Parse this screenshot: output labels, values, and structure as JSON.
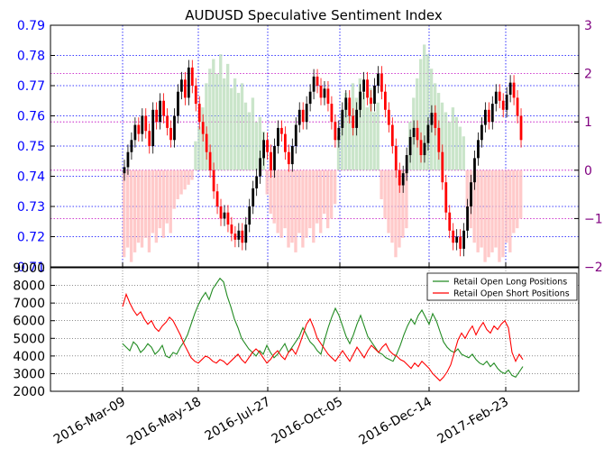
{
  "chart_data": [
    {
      "type": "candlestick+bar",
      "title": "AUDUSD Speculative Sentiment Index",
      "y_left": {
        "ticks": [
          0.71,
          0.72,
          0.73,
          0.74,
          0.75,
          0.76,
          0.77,
          0.78,
          0.79
        ],
        "tick_labels": [
          "0.71",
          "0.72",
          "0.73",
          "0.74",
          "0.75",
          "0.76",
          "0.77",
          "0.78",
          "0.79"
        ],
        "range": [
          0.71,
          0.79
        ],
        "color": "#0000ff"
      },
      "y_right": {
        "ticks": [
          -2,
          -1,
          0,
          1,
          2,
          3
        ],
        "tick_labels": [
          "−2",
          "−1",
          "0",
          "1",
          "2",
          "3"
        ],
        "range": [
          -2,
          3
        ],
        "color": "#800080"
      },
      "price_close": [
        0.743,
        0.748,
        0.752,
        0.757,
        0.754,
        0.76,
        0.755,
        0.75,
        0.762,
        0.758,
        0.765,
        0.76,
        0.756,
        0.752,
        0.76,
        0.768,
        0.772,
        0.766,
        0.776,
        0.77,
        0.764,
        0.758,
        0.754,
        0.748,
        0.742,
        0.735,
        0.73,
        0.726,
        0.728,
        0.724,
        0.721,
        0.719,
        0.722,
        0.718,
        0.724,
        0.73,
        0.736,
        0.74,
        0.746,
        0.752,
        0.748,
        0.742,
        0.75,
        0.756,
        0.754,
        0.748,
        0.744,
        0.75,
        0.757,
        0.762,
        0.758,
        0.764,
        0.768,
        0.773,
        0.77,
        0.766,
        0.769,
        0.764,
        0.758,
        0.752,
        0.756,
        0.762,
        0.766,
        0.76,
        0.756,
        0.762,
        0.768,
        0.772,
        0.766,
        0.764,
        0.77,
        0.774,
        0.768,
        0.762,
        0.757,
        0.75,
        0.742,
        0.737,
        0.741,
        0.747,
        0.753,
        0.756,
        0.752,
        0.747,
        0.751,
        0.757,
        0.761,
        0.756,
        0.748,
        0.738,
        0.728,
        0.722,
        0.718,
        0.72,
        0.716,
        0.722,
        0.73,
        0.738,
        0.746,
        0.752,
        0.757,
        0.762,
        0.758,
        0.764,
        0.768,
        0.765,
        0.762,
        0.767,
        0.771,
        0.766,
        0.76,
        0.752
      ],
      "ssi_histogram": [
        -1.8,
        -1.6,
        -1.9,
        -1.7,
        -1.5,
        -1.6,
        -1.4,
        -1.7,
        -1.3,
        -1.5,
        -1.2,
        -1.4,
        -1.1,
        -1.3,
        -0.8,
        -0.6,
        -0.5,
        -0.4,
        -0.3,
        -0.2,
        0.6,
        0.9,
        1.3,
        1.8,
        2.1,
        2.3,
        2.0,
        2.4,
        1.9,
        2.2,
        1.7,
        1.9,
        1.6,
        1.8,
        1.4,
        1.2,
        1.5,
        1.0,
        1.1,
        0.8,
        -0.5,
        -0.9,
        -1.1,
        -1.3,
        -1.4,
        -1.2,
        -1.6,
        -1.5,
        -1.7,
        -1.3,
        -1.6,
        -1.4,
        -1.2,
        -1.5,
        -1.1,
        -1.3,
        -0.9,
        -1.2,
        -1.0,
        -0.7,
        0.7,
        1.2,
        1.6,
        1.4,
        1.8,
        1.5,
        1.9,
        1.6,
        1.3,
        1.7,
        1.2,
        1.4,
        -0.6,
        -1.0,
        -1.3,
        -1.5,
        -1.8,
        -1.6,
        -1.4,
        -1.2,
        1.0,
        1.5,
        1.9,
        2.3,
        2.6,
        2.4,
        2.1,
        1.8,
        1.6,
        1.4,
        1.2,
        1.0,
        1.3,
        1.1,
        0.9,
        0.7,
        -0.8,
        -1.2,
        -1.5,
        -1.7,
        -1.6,
        -1.9,
        -1.8,
        -1.7,
        -1.6,
        -1.9,
        -1.8,
        -1.5,
        -1.7,
        -1.3,
        -1.2,
        -1.0
      ],
      "x_tick_labels": [
        "2016-Mar-09",
        "2016-May-18",
        "2016-Jul-27",
        "2016-Oct-05",
        "2016-Dec-14",
        "2017-Feb-23"
      ]
    },
    {
      "type": "line",
      "y_ticks": [
        2000,
        3000,
        4000,
        5000,
        6000,
        7000,
        8000,
        9000
      ],
      "y_tick_labels": [
        "2000",
        "3000",
        "4000",
        "5000",
        "6000",
        "7000",
        "8000",
        "9000"
      ],
      "ylim": [
        2000,
        9000
      ],
      "series": [
        {
          "name": "Retail Open Long Positions",
          "color": "#228b22",
          "values": [
            4700,
            4500,
            4300,
            4800,
            4600,
            4200,
            4400,
            4700,
            4500,
            4100,
            4300,
            4600,
            4000,
            3900,
            4200,
            4100,
            4500,
            4800,
            5200,
            5800,
            6400,
            6900,
            7300,
            7600,
            7200,
            7800,
            8100,
            8400,
            8200,
            7400,
            6800,
            6100,
            5600,
            5000,
            4700,
            4400,
            4200,
            4000,
            4300,
            4100,
            4600,
            4200,
            3900,
            4100,
            4400,
            4700,
            4200,
            4500,
            4800,
            5100,
            5600,
            5200,
            4800,
            4600,
            4300,
            4100,
            4900,
            5600,
            6200,
            6700,
            6300,
            5700,
            5100,
            4700,
            5200,
            5800,
            6300,
            5700,
            5100,
            4800,
            4500,
            4200,
            4100,
            3900,
            3800,
            3700,
            4100,
            4600,
            5200,
            5700,
            6100,
            5800,
            6300,
            6600,
            6200,
            5800,
            6400,
            6000,
            5400,
            4800,
            4500,
            4300,
            4200,
            4400,
            4100,
            4000,
            3900,
            4100,
            3800,
            3600,
            3500,
            3700,
            3400,
            3600,
            3300,
            3100,
            3000,
            3200,
            2900,
            2800,
            3100,
            3400
          ]
        },
        {
          "name": "Retail Open Short Positions",
          "color": "#ff0000",
          "values": [
            6800,
            7500,
            7000,
            6600,
            6300,
            6500,
            6100,
            5800,
            6000,
            5600,
            5400,
            5700,
            5900,
            6200,
            6000,
            5600,
            5200,
            4700,
            4300,
            3900,
            3700,
            3600,
            3800,
            4000,
            3900,
            3700,
            3600,
            3800,
            3700,
            3500,
            3700,
            3900,
            4100,
            3800,
            3600,
            3900,
            4200,
            4400,
            4200,
            3900,
            3600,
            3800,
            4100,
            4300,
            4000,
            3800,
            4200,
            4400,
            4100,
            4600,
            5200,
            5800,
            6100,
            5600,
            5000,
            4700,
            4400,
            4100,
            3900,
            3700,
            4000,
            4300,
            4000,
            3700,
            4100,
            4500,
            4200,
            3900,
            4300,
            4600,
            4400,
            4200,
            4500,
            4700,
            4300,
            4100,
            4000,
            3800,
            3700,
            3500,
            3300,
            3600,
            3400,
            3700,
            3500,
            3300,
            3000,
            2800,
            2600,
            2800,
            3100,
            3500,
            4200,
            4900,
            5300,
            5000,
            5400,
            5700,
            5200,
            5600,
            5900,
            5500,
            5300,
            5700,
            5500,
            5800,
            6000,
            5600,
            4200,
            3700,
            4100,
            3800
          ]
        }
      ],
      "legend": "top-right",
      "x_tick_labels": [
        "2016-Mar-09",
        "2016-May-18",
        "2016-Jul-27",
        "2016-Oct-05",
        "2016-Dec-14",
        "2017-Feb-23"
      ]
    }
  ]
}
